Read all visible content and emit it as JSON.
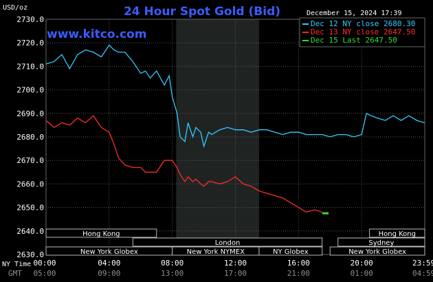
{
  "header": {
    "title": "24 Hour Spot Gold (Bid)",
    "unit": "USD/oz",
    "date": "December 15, 2024 17:39",
    "site": "www.kitco.com"
  },
  "legend": [
    {
      "label": "Dec 12 NY close 2680.30",
      "color": "#33ccff"
    },
    {
      "label": "Dec 13 NY close 2647.50",
      "color": "#ff2a2a"
    },
    {
      "label": "Dec 15 Last 2647.50",
      "color": "#33dd33"
    }
  ],
  "axis": {
    "ny_label": "NY Time",
    "gmt_label": "GMT",
    "ny_ticks": [
      "00:00",
      "04:00",
      "08:00",
      "12:00",
      "16:00",
      "20:00",
      "23:59"
    ],
    "gmt_ticks": [
      "05:00",
      "09:00",
      "13:00",
      "17:00",
      "21:00",
      "01:00",
      "04:59"
    ]
  },
  "sessions": [
    {
      "label": "Hong Kong",
      "start": 0,
      "end": 7,
      "row": 0
    },
    {
      "label": "Hong Kong",
      "start": 20.5,
      "end": 24,
      "row": 0
    },
    {
      "label": "London",
      "start": 5.5,
      "end": 17.5,
      "row": 1
    },
    {
      "label": "Sydney",
      "start": 18.5,
      "end": 24,
      "row": 1
    },
    {
      "label": "New York Globex",
      "start": 0,
      "end": 8,
      "row": 2
    },
    {
      "label": "New York NYMEX",
      "start": 8,
      "end": 13.5,
      "row": 2
    },
    {
      "label": "NY Globex",
      "start": 13.5,
      "end": 17.5,
      "row": 2
    },
    {
      "label": "New York Globex",
      "start": 18,
      "end": 24,
      "row": 2
    }
  ],
  "chart_data": {
    "type": "line",
    "title": "24 Hour Spot Gold (Bid)",
    "ylabel": "USD/oz",
    "xlabel": "NY Time",
    "ylim": [
      2630,
      2730
    ],
    "xlim": [
      0,
      24
    ],
    "y_ticks": [
      "2730.0",
      "2720.0",
      "2710.0",
      "2700.0",
      "2690.0",
      "2680.0",
      "2670.0",
      "2660.0",
      "2650.0",
      "2640.0",
      "2630.0"
    ],
    "grid": true,
    "legend_position": "top-right",
    "highlight_band": [
      8.25,
      13.5
    ],
    "series": [
      {
        "name": "Dec 12 NY close 2680.30",
        "color": "#33ccff",
        "x": [
          0,
          0.5,
          1,
          1.5,
          2,
          2.5,
          3,
          3.5,
          4,
          4.3,
          4.6,
          5,
          5.5,
          6,
          6.3,
          6.6,
          7,
          7.5,
          7.8,
          8,
          8.3,
          8.5,
          8.8,
          9,
          9.3,
          9.5,
          9.8,
          10,
          10.3,
          10.5,
          11,
          11.5,
          12,
          12.5,
          13,
          13.5,
          14,
          14.5,
          15,
          15.5,
          16,
          16.5,
          17,
          17.5,
          18,
          18.5,
          19,
          19.5,
          20,
          20.3,
          20.6,
          21,
          21.5,
          22,
          22.5,
          23,
          23.5,
          23.99
        ],
        "y": [
          2711,
          2712,
          2715,
          2709,
          2715,
          2717,
          2716,
          2714,
          2719,
          2717,
          2716,
          2716,
          2712,
          2707,
          2708,
          2705,
          2708,
          2702,
          2706,
          2697,
          2690,
          2680,
          2678,
          2686,
          2680,
          2684,
          2682,
          2676,
          2682,
          2681,
          2683,
          2684,
          2683,
          2683,
          2682,
          2683,
          2683,
          2682,
          2681,
          2682,
          2682,
          2681,
          2681,
          2681,
          2680,
          2681,
          2681,
          2680,
          2681,
          2690,
          2689,
          2688,
          2687,
          2689,
          2687,
          2689,
          2687,
          2686
        ]
      },
      {
        "name": "Dec 13 NY close 2647.50",
        "color": "#ff2a2a",
        "x": [
          0,
          0.5,
          1,
          1.5,
          2,
          2.5,
          3,
          3.5,
          4,
          4.3,
          4.6,
          5,
          5.5,
          6,
          6.3,
          6.6,
          7,
          7.5,
          7.8,
          8,
          8.3,
          8.5,
          8.8,
          9,
          9.3,
          9.5,
          9.8,
          10,
          10.3,
          10.5,
          11,
          11.5,
          12,
          12.5,
          13,
          13.5,
          14,
          14.5,
          15,
          15.5,
          16,
          16.5,
          17,
          17.5
        ],
        "y": [
          2687,
          2684,
          2686,
          2685,
          2688,
          2686,
          2689,
          2684,
          2682,
          2677,
          2671,
          2668,
          2667,
          2667,
          2665,
          2665,
          2665,
          2670,
          2670,
          2670,
          2667,
          2664,
          2661,
          2663,
          2661,
          2662,
          2660,
          2659,
          2661,
          2661,
          2660,
          2661,
          2663,
          2660,
          2659,
          2657,
          2656,
          2655,
          2654,
          2652,
          2650,
          2648,
          2649,
          2648
        ]
      },
      {
        "name": "Dec 15 Last 2647.50",
        "color": "#33dd33",
        "x": [
          17.5,
          17.9
        ],
        "y": [
          2647.5,
          2647.5
        ]
      }
    ]
  }
}
